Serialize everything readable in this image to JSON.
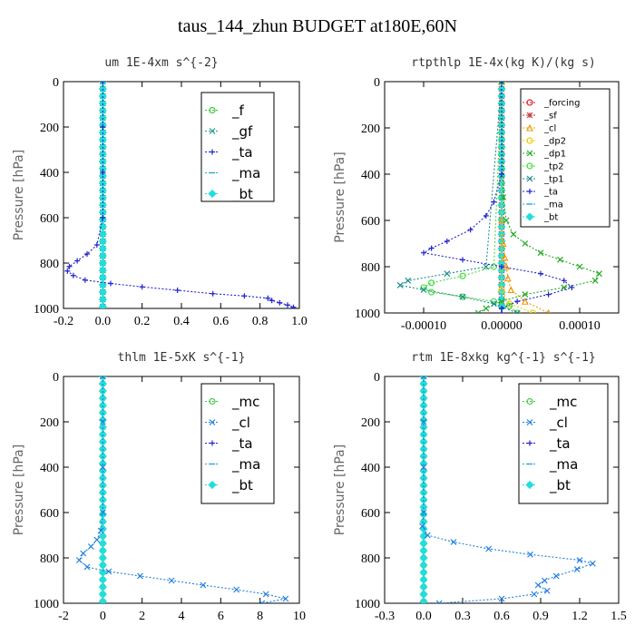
{
  "figure": {
    "title": "taus_144_zhun  BUDGET at180E,60N"
  },
  "chart_data": [
    {
      "type": "line",
      "title": "um  1E-4xm s^{-2}",
      "ylabel": "Pressure [hPa]",
      "xlabel": "",
      "xlim": [
        -0.2,
        1.0
      ],
      "ylim": [
        1000,
        0
      ],
      "xticks": [
        "-0.2",
        "0.0",
        "0.2",
        "0.4",
        "0.6",
        "0.8",
        "1.0"
      ],
      "yticks": [
        "0",
        "200",
        "400",
        "600",
        "800",
        "1000"
      ],
      "legend_position": "top-right",
      "grid": false,
      "series": [
        {
          "name": "_f",
          "color": "#33cc33",
          "marker": "circle",
          "y": [
            0,
            100,
            200,
            300,
            400,
            500,
            600,
            700,
            800,
            900,
            1000
          ],
          "x": [
            0,
            0,
            0,
            0,
            0,
            0,
            0,
            0,
            0,
            0,
            0
          ]
        },
        {
          "name": "_gf",
          "color": "#1a9a8a",
          "marker": "x",
          "y": [
            0,
            100,
            200,
            300,
            400,
            500,
            600,
            700,
            800,
            900,
            1000
          ],
          "x": [
            0,
            0,
            0,
            0,
            0,
            0,
            0,
            0,
            0,
            0,
            0
          ]
        },
        {
          "name": "_ta",
          "color": "#2222cc",
          "marker": "plus",
          "y": [
            0,
            200,
            400,
            600,
            720,
            760,
            790,
            815,
            835,
            855,
            875,
            890,
            905,
            920,
            935,
            945,
            955,
            965,
            975,
            985,
            995,
            1000
          ],
          "x": [
            0,
            0,
            0,
            0,
            -0.03,
            -0.08,
            -0.13,
            -0.17,
            -0.18,
            -0.15,
            -0.09,
            0.04,
            0.2,
            0.38,
            0.56,
            0.72,
            0.84,
            0.86,
            0.9,
            0.94,
            0.97,
            0.97
          ]
        },
        {
          "name": "_ma",
          "color": "#22aacc",
          "marker": "dash",
          "y": [
            0,
            500,
            1000
          ],
          "x": [
            0,
            0,
            0
          ]
        },
        {
          "name": "_bt",
          "color": "#22dddd",
          "marker": "diamond",
          "y": [
            0,
            100,
            200,
            300,
            400,
            500,
            600,
            700,
            800,
            900,
            1000
          ],
          "x": [
            0,
            0,
            0,
            0,
            0,
            0,
            0,
            0,
            0,
            0,
            0
          ]
        }
      ]
    },
    {
      "type": "line",
      "title": "rtpthlp  1E-4x(kg K)/(kg s)",
      "ylabel": "Pressure [hPa]",
      "xlabel": "",
      "xlim": [
        -0.00015,
        0.00015
      ],
      "ylim": [
        1000,
        0
      ],
      "xticks": [
        "-0.00010",
        "0.00000",
        "0.00010"
      ],
      "xtick_values": [
        -0.0001,
        0,
        0.0001
      ],
      "yticks": [
        "0",
        "200",
        "400",
        "600",
        "800",
        "1000"
      ],
      "legend_position": "top-right",
      "grid": false,
      "series": [
        {
          "name": "_forcing",
          "color": "#dd2222",
          "marker": "circle",
          "y": [
            0,
            100,
            200,
            300,
            400,
            500,
            600,
            700,
            800,
            900,
            1000
          ],
          "x": [
            0,
            0,
            0,
            0,
            0,
            0,
            0,
            0,
            0,
            0,
            0
          ]
        },
        {
          "name": "_sf",
          "color": "#cc3333",
          "marker": "star",
          "y": [
            0,
            100,
            200,
            300,
            400,
            500,
            600,
            700,
            800,
            900,
            1000
          ],
          "x": [
            0,
            0,
            0,
            0,
            0,
            0,
            0,
            0,
            0,
            0,
            0
          ]
        },
        {
          "name": "_cl",
          "color": "#ee9900",
          "marker": "triangle",
          "y": [
            0,
            600,
            700,
            760,
            800,
            850,
            900,
            950,
            1000
          ],
          "x": [
            0,
            0,
            2e-06,
            4e-06,
            6e-06,
            8e-06,
            1.2e-05,
            3e-05,
            6e-05
          ]
        },
        {
          "name": "_dp2",
          "color": "#eecc00",
          "marker": "circle",
          "y": [
            0,
            900,
            960,
            1000
          ],
          "x": [
            0,
            0,
            1e-05,
            4e-05
          ]
        },
        {
          "name": "_dp1",
          "color": "#22aa22",
          "marker": "x",
          "y": [
            0,
            500,
            600,
            660,
            700,
            740,
            770,
            800,
            830,
            860,
            890,
            920,
            950,
            980,
            1000
          ],
          "x": [
            0,
            2e-06,
            6e-06,
            1.5e-05,
            3e-05,
            5e-05,
            7.5e-05,
            0.0001,
            0.000125,
            0.00012,
            8e-05,
            3e-05,
            0,
            -2e-05,
            -3e-05
          ]
        },
        {
          "name": "_tp2",
          "color": "#44dd44",
          "marker": "circle",
          "y": [
            0,
            800,
            840,
            870,
            890,
            910,
            930,
            950,
            970,
            1000
          ],
          "x": [
            0,
            -1e-05,
            -5e-05,
            -9e-05,
            -0.0001,
            -9e-05,
            -5e-05,
            -1e-05,
            1e-05,
            2e-05
          ]
        },
        {
          "name": "_tp1",
          "color": "#1a8a8a",
          "marker": "x",
          "y": [
            0,
            800,
            830,
            860,
            880,
            900,
            930,
            960,
            1000
          ],
          "x": [
            0,
            -2e-05,
            -7e-05,
            -0.00012,
            -0.00013,
            -0.0001,
            -5e-05,
            -1e-05,
            2e-05
          ]
        },
        {
          "name": "_ta",
          "color": "#2222cc",
          "marker": "plus",
          "y": [
            0,
            400,
            520,
            580,
            640,
            690,
            720,
            740,
            770,
            800,
            830,
            860,
            890,
            920,
            950,
            980,
            1000
          ],
          "x": [
            0,
            0,
            -1e-05,
            -2e-05,
            -4e-05,
            -7e-05,
            -9e-05,
            -0.0001,
            -5e-05,
            0,
            5e-05,
            8e-05,
            9e-05,
            6e-05,
            2e-05,
            0,
            0
          ]
        },
        {
          "name": "_ma",
          "color": "#22aacc",
          "marker": "dash",
          "y": [
            0,
            500,
            1000
          ],
          "x": [
            0,
            0,
            0
          ]
        },
        {
          "name": "_bt",
          "color": "#22dddd",
          "marker": "diamond",
          "y": [
            0,
            100,
            200,
            300,
            400,
            500,
            600,
            700,
            800,
            900,
            1000
          ],
          "x": [
            0,
            0,
            0,
            0,
            0,
            0,
            0,
            0,
            0,
            0,
            0
          ]
        }
      ]
    },
    {
      "type": "line",
      "title": "thlm  1E-5xK s^{-1}",
      "ylabel": "Pressure [hPa]",
      "xlabel": "",
      "xlim": [
        -2,
        10
      ],
      "ylim": [
        1000,
        0
      ],
      "xticks": [
        "-2",
        "0",
        "2",
        "4",
        "6",
        "8",
        "10"
      ],
      "yticks": [
        "0",
        "200",
        "400",
        "600",
        "800",
        "1000"
      ],
      "legend_position": "top-right",
      "grid": false,
      "series": [
        {
          "name": "_mc",
          "color": "#44cc44",
          "marker": "circle",
          "y": [
            0,
            100,
            200,
            300,
            400,
            500,
            600,
            700,
            800,
            900,
            1000
          ],
          "x": [
            0,
            0,
            0,
            0,
            0,
            0,
            0,
            0,
            0,
            0,
            0
          ]
        },
        {
          "name": "_cl",
          "color": "#1f7fdd",
          "marker": "x",
          "y": [
            0,
            200,
            400,
            600,
            680,
            720,
            750,
            780,
            810,
            840,
            860,
            880,
            900,
            920,
            940,
            960,
            980,
            1000
          ],
          "x": [
            0,
            0,
            0,
            0,
            -0.1,
            -0.3,
            -0.6,
            -1.0,
            -1.2,
            -0.8,
            0.3,
            1.9,
            3.5,
            5.1,
            6.8,
            8.3,
            9.3,
            8.1
          ]
        },
        {
          "name": "_ta",
          "color": "#2222cc",
          "marker": "plus",
          "y": [
            0,
            500,
            1000
          ],
          "x": [
            0,
            0,
            0
          ]
        },
        {
          "name": "_ma",
          "color": "#22aacc",
          "marker": "dash",
          "y": [
            0,
            500,
            1000
          ],
          "x": [
            0,
            0,
            0
          ]
        },
        {
          "name": "_bt",
          "color": "#22dddd",
          "marker": "diamond",
          "y": [
            0,
            100,
            200,
            300,
            400,
            500,
            600,
            700,
            800,
            900,
            1000
          ],
          "x": [
            0,
            0,
            0,
            0,
            0,
            0,
            0,
            0,
            0,
            0,
            0
          ]
        }
      ]
    },
    {
      "type": "line",
      "title": "rtm  1E-8xkg kg^{-1} s^{-1}",
      "ylabel": "Pressure [hPa]",
      "xlabel": "",
      "xlim": [
        -0.3,
        1.5
      ],
      "ylim": [
        1000,
        0
      ],
      "xticks": [
        "-0.3",
        "0.0",
        "0.3",
        "0.6",
        "0.9",
        "1.2",
        "1.5"
      ],
      "yticks": [
        "0",
        "200",
        "400",
        "600",
        "800",
        "1000"
      ],
      "legend_position": "top-right",
      "grid": false,
      "series": [
        {
          "name": "_mc",
          "color": "#44cc44",
          "marker": "circle",
          "y": [
            0,
            100,
            200,
            300,
            400,
            500,
            600,
            700,
            800,
            900,
            1000
          ],
          "x": [
            0,
            0,
            0,
            0,
            0,
            0,
            0,
            0,
            0,
            0,
            0
          ]
        },
        {
          "name": "_cl",
          "color": "#1f7fdd",
          "marker": "x",
          "y": [
            0,
            200,
            400,
            600,
            660,
            700,
            730,
            760,
            785,
            810,
            825,
            850,
            880,
            900,
            920,
            945,
            960,
            980,
            1000
          ],
          "x": [
            0,
            0,
            0,
            0,
            -0.01,
            0.03,
            0.23,
            0.5,
            0.82,
            1.2,
            1.3,
            1.18,
            1.02,
            0.93,
            0.88,
            0.95,
            0.85,
            0.6,
            0.12
          ]
        },
        {
          "name": "_ta",
          "color": "#2222cc",
          "marker": "plus",
          "y": [
            0,
            500,
            1000
          ],
          "x": [
            0,
            0,
            0
          ]
        },
        {
          "name": "_ma",
          "color": "#22aacc",
          "marker": "dash",
          "y": [
            0,
            500,
            1000
          ],
          "x": [
            0,
            0,
            0
          ]
        },
        {
          "name": "_bt",
          "color": "#22dddd",
          "marker": "diamond",
          "y": [
            0,
            100,
            200,
            300,
            400,
            500,
            600,
            700,
            800,
            900,
            1000
          ],
          "x": [
            0,
            0,
            0,
            0,
            0,
            0,
            0,
            0,
            0,
            0,
            0
          ]
        }
      ]
    }
  ]
}
